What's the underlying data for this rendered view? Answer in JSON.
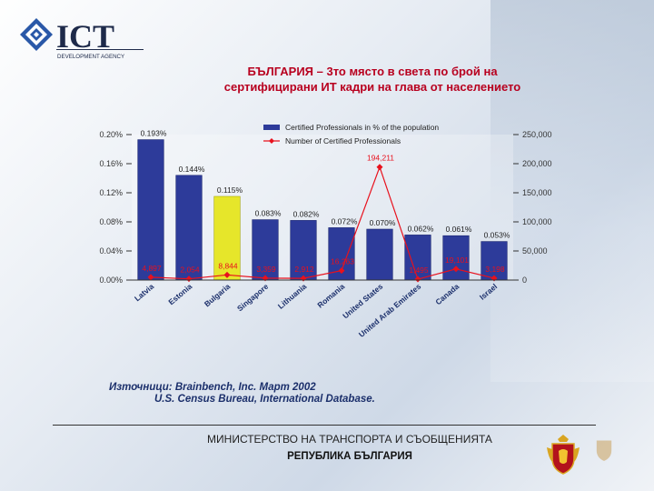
{
  "logo": {
    "brand": "ICT",
    "subtitle": "DEVELOPMENT AGENCY"
  },
  "title": {
    "line1": "БЪЛГАРИЯ – 3то  място в света по брой на",
    "line2": "сертифицирани ИТ кадри на глава от населението"
  },
  "sources": {
    "line1": "Източници: Brainbench, Inc. Март 2002",
    "line2": "U.S. Census Bureau, International Database."
  },
  "footer": {
    "ministry": "МИНИСТЕРСТВО НА ТРАНСПОРТА И СЪОБЩЕНИЯТА",
    "republic": "РЕПУБЛИКА БЪЛГАРИЯ"
  },
  "colors": {
    "bar": "#2d3b9a",
    "highlight": "#e6e62a",
    "line": "#e8111d",
    "title": "#b8001f"
  },
  "chart_data": {
    "type": "bar",
    "categories": [
      "Latvia",
      "Estonia",
      "Bulgaria",
      "Singapore",
      "Lithuania",
      "Romania",
      "United States",
      "United Arab Emirates",
      "Canada",
      "Israel"
    ],
    "highlight_category": "Bulgaria",
    "series": [
      {
        "name": "Certified Professionals in % of the population",
        "type": "bar",
        "axis": "left",
        "values": [
          0.193,
          0.144,
          0.115,
          0.083,
          0.082,
          0.072,
          0.07,
          0.062,
          0.061,
          0.053
        ],
        "labels": [
          "0.193%",
          "0.144%",
          "0.115%",
          "0.083%",
          "0.082%",
          "0.072%",
          "0.070%",
          "0.062%",
          "0.061%",
          "0.053%"
        ]
      },
      {
        "name": "Number of Certified Professionals",
        "type": "line",
        "axis": "right",
        "values": [
          4897,
          2054,
          8844,
          3359,
          2912,
          16263,
          194211,
          1495,
          19101,
          3198
        ],
        "labels": [
          "4,897",
          "2,054",
          "8,844",
          "3,359",
          "2,912",
          "16,263",
          "194,211",
          "1,495",
          "19,101",
          "3,198"
        ]
      }
    ],
    "y_left": {
      "min": 0,
      "max": 0.2,
      "ticks": [
        0,
        0.04,
        0.08,
        0.12,
        0.16,
        0.2
      ],
      "tick_labels": [
        "0.00%",
        "0.04%",
        "0.08%",
        "0.12%",
        "0.16%",
        "0.20%"
      ]
    },
    "y_right": {
      "min": 0,
      "max": 250000,
      "ticks": [
        0,
        50000,
        100000,
        150000,
        200000,
        250000
      ],
      "tick_labels": [
        "0",
        "50,000",
        "100,000",
        "150,000",
        "200,000",
        "250,000"
      ]
    },
    "legend_position": "top-right"
  }
}
